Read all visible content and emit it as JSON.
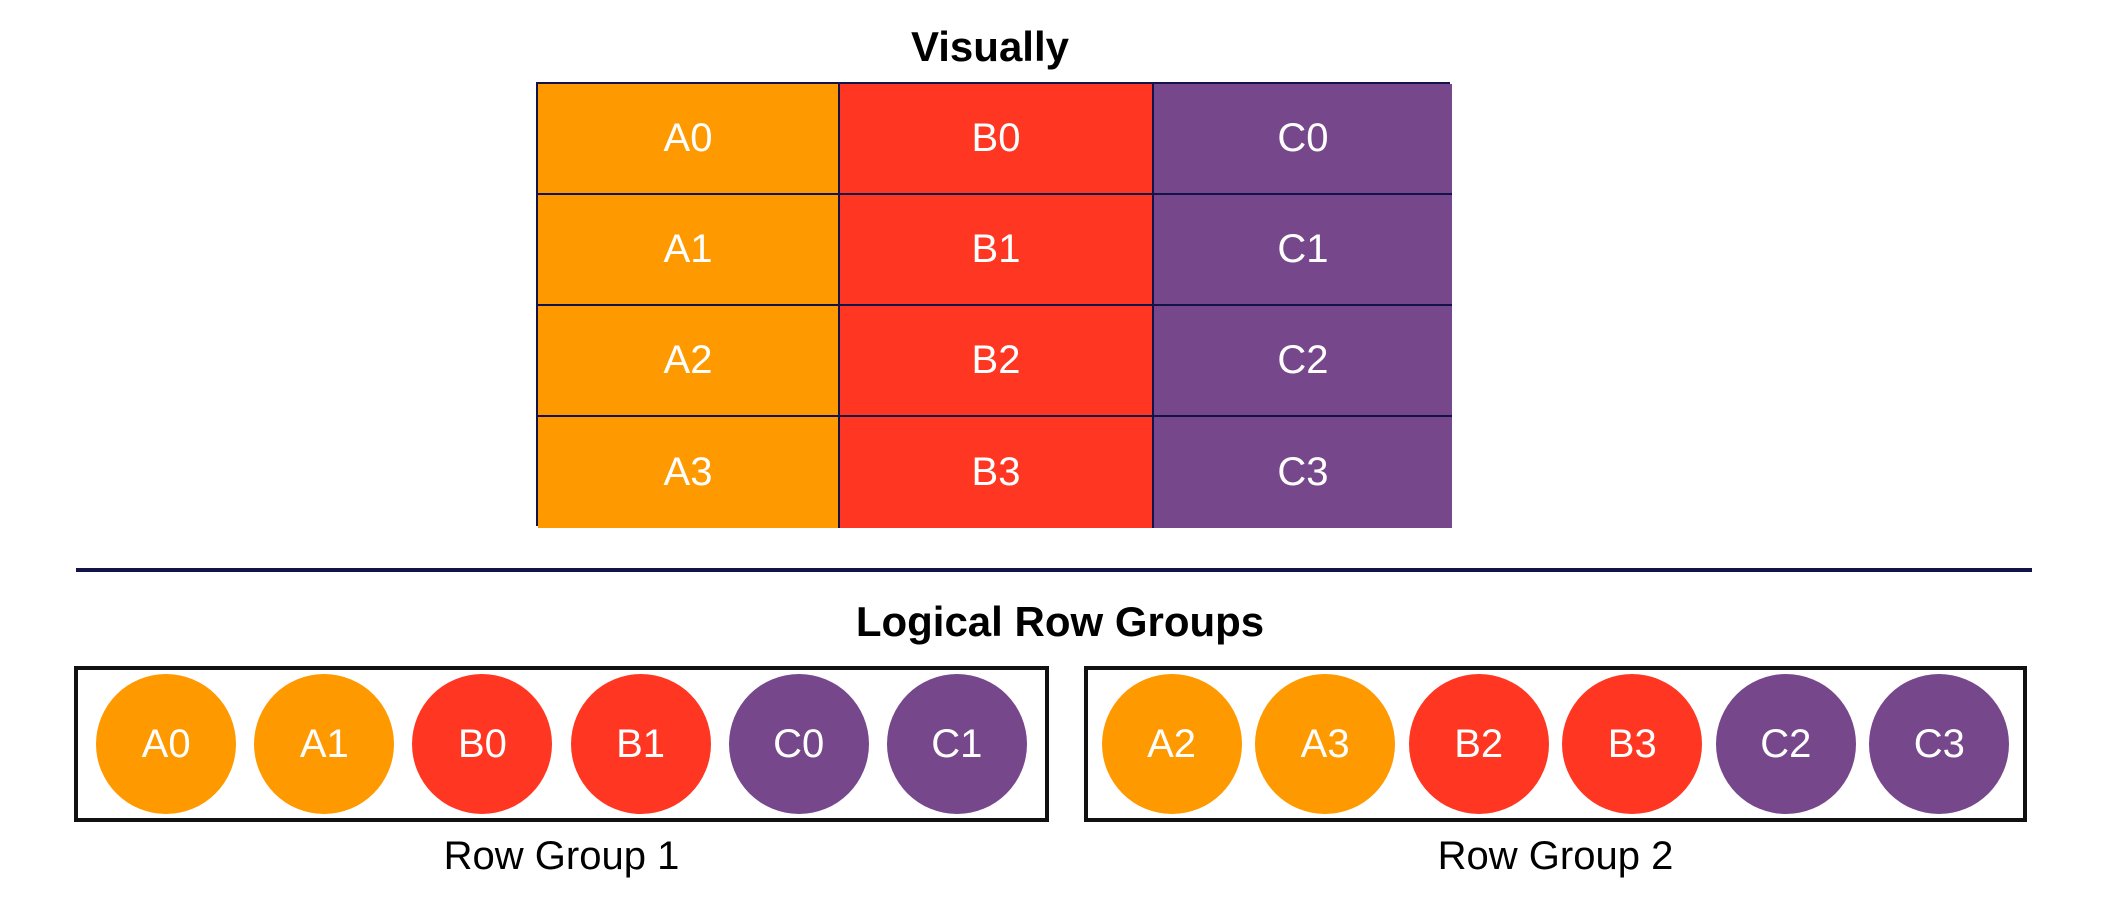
{
  "colors": {
    "a": "#FF9900",
    "b": "#FF3722",
    "c": "#77478C",
    "border": "#14124A"
  },
  "visual": {
    "title": "Visually",
    "rows": [
      [
        "A0",
        "B0",
        "C0"
      ],
      [
        "A1",
        "B1",
        "C1"
      ],
      [
        "A2",
        "B2",
        "C2"
      ],
      [
        "A3",
        "B3",
        "C3"
      ]
    ]
  },
  "logical": {
    "title": "Logical Row Groups",
    "groups": [
      {
        "label": "Row Group 1",
        "items": [
          "A0",
          "A1",
          "B0",
          "B1",
          "C0",
          "C1"
        ]
      },
      {
        "label": "Row Group 2",
        "items": [
          "A2",
          "A3",
          "B2",
          "B3",
          "C2",
          "C3"
        ]
      }
    ]
  }
}
